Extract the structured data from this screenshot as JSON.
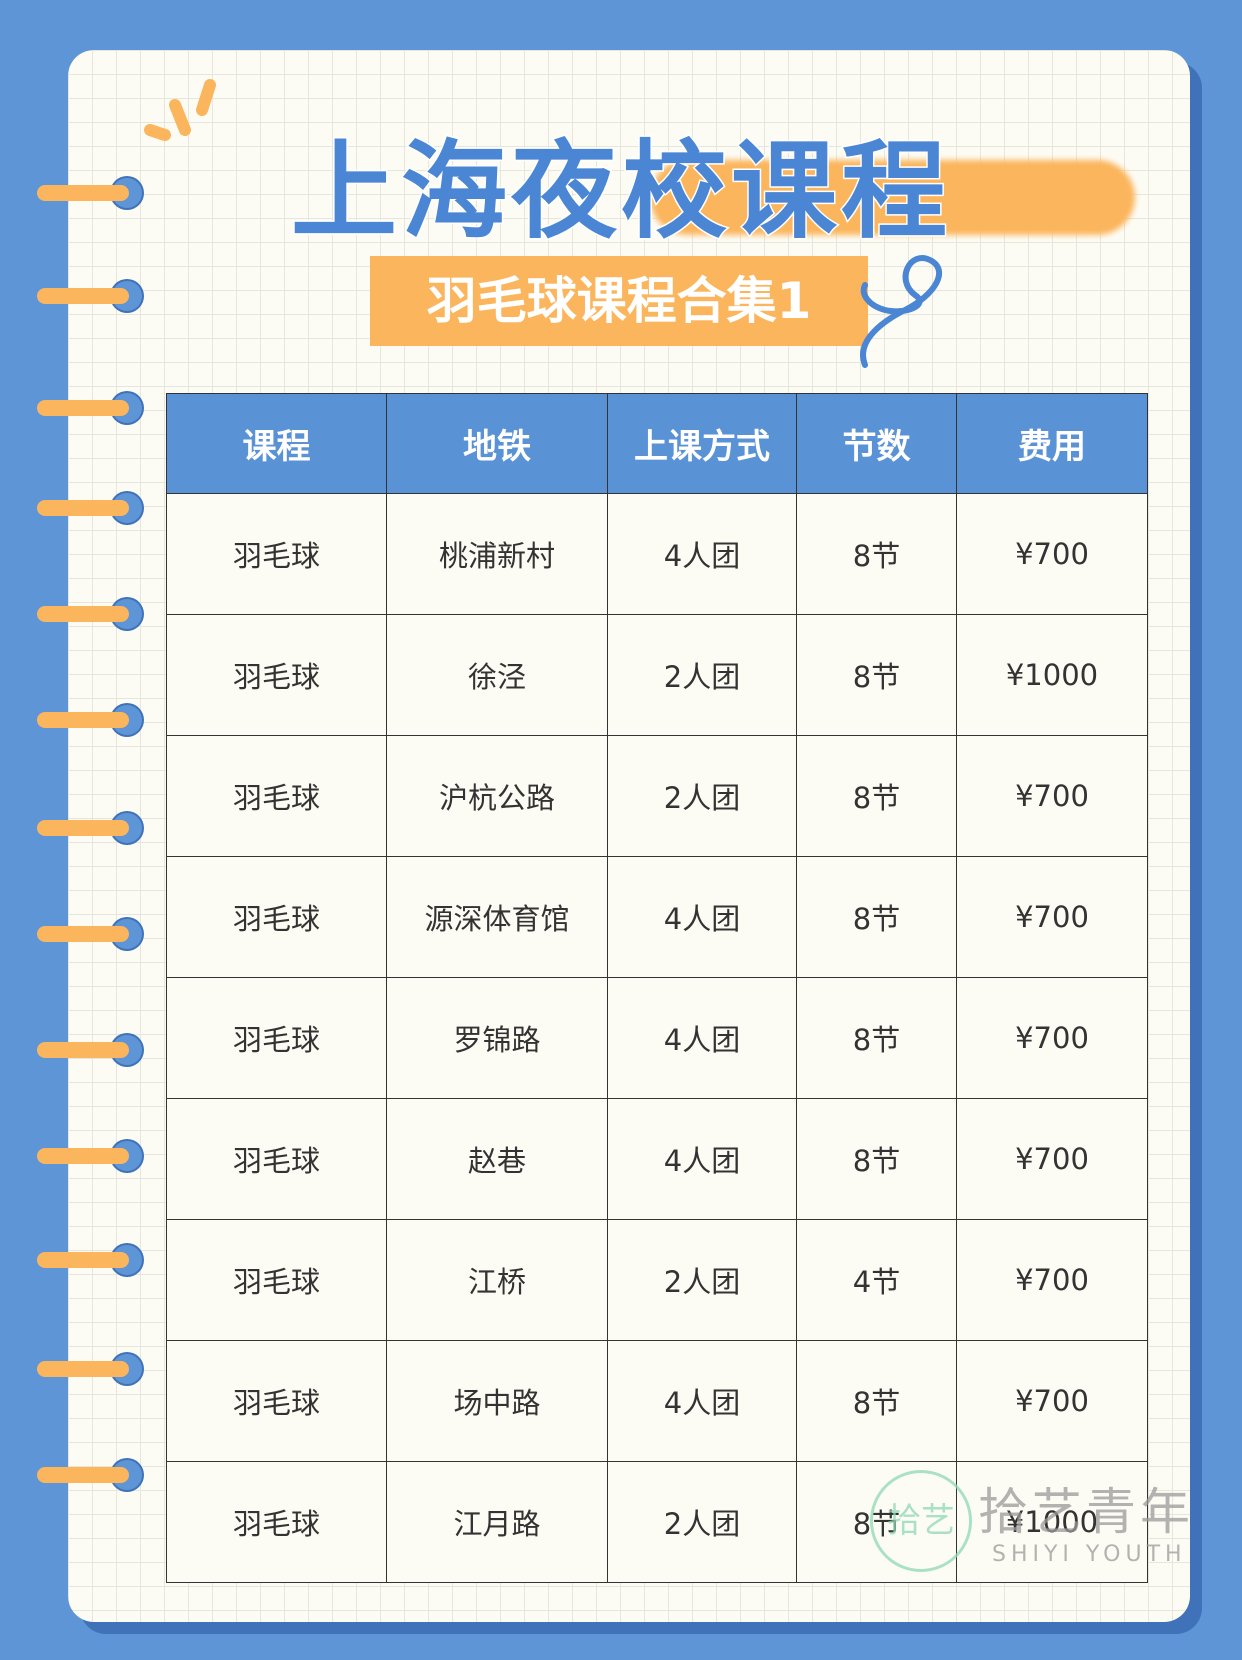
{
  "header": {
    "title": "上海夜校课程",
    "subtitle": "羽毛球课程合集1"
  },
  "table": {
    "columns": [
      "课程",
      "地铁",
      "上课方式",
      "节数",
      "费用"
    ],
    "rows": [
      [
        "羽毛球",
        "桃浦新村",
        "4人团",
        "8节",
        "¥700"
      ],
      [
        "羽毛球",
        "徐泾",
        "2人团",
        "8节",
        "¥1000"
      ],
      [
        "羽毛球",
        "沪杭公路",
        "2人团",
        "8节",
        "¥700"
      ],
      [
        "羽毛球",
        "源深体育馆",
        "4人团",
        "8节",
        "¥700"
      ],
      [
        "羽毛球",
        "罗锦路",
        "4人团",
        "8节",
        "¥700"
      ],
      [
        "羽毛球",
        "赵巷",
        "4人团",
        "8节",
        "¥700"
      ],
      [
        "羽毛球",
        "江桥",
        "2人团",
        "4节",
        "¥700"
      ],
      [
        "羽毛球",
        "场中路",
        "4人团",
        "8节",
        "¥700"
      ],
      [
        "羽毛球",
        "江月路",
        "2人团",
        "8节",
        "¥1000"
      ]
    ]
  },
  "watermark": {
    "logo": "拾艺",
    "name": "拾艺青年",
    "name_en": "SHIYI YOUTH"
  }
}
